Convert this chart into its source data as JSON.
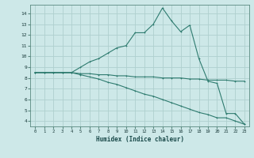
{
  "xlabel": "Humidex (Indice chaleur)",
  "background_color": "#cde8e8",
  "line_color": "#2e7b6f",
  "grid_color": "#afd0ce",
  "x_values": [
    0,
    1,
    2,
    3,
    4,
    5,
    6,
    7,
    8,
    9,
    10,
    11,
    12,
    13,
    14,
    15,
    16,
    17,
    18,
    19,
    20,
    21,
    22,
    23
  ],
  "line1_y": [
    8.5,
    8.5,
    8.5,
    8.5,
    8.5,
    8.4,
    8.4,
    8.3,
    8.3,
    8.2,
    8.2,
    8.1,
    8.1,
    8.1,
    8.0,
    8.0,
    8.0,
    7.9,
    7.9,
    7.8,
    7.8,
    7.8,
    7.7,
    7.7
  ],
  "line2_y": [
    8.5,
    8.5,
    8.5,
    8.5,
    8.5,
    9.0,
    9.5,
    9.8,
    10.3,
    10.8,
    11.0,
    12.2,
    12.2,
    13.0,
    14.5,
    13.3,
    12.3,
    12.9,
    9.8,
    7.7,
    7.5,
    4.7,
    4.7,
    3.7
  ],
  "line3_y": [
    8.5,
    8.5,
    8.5,
    8.5,
    8.5,
    8.3,
    8.1,
    7.9,
    7.6,
    7.4,
    7.1,
    6.8,
    6.5,
    6.3,
    6.0,
    5.7,
    5.4,
    5.1,
    4.8,
    4.6,
    4.3,
    4.3,
    4.0,
    3.7
  ],
  "ylim_min": 3.5,
  "ylim_max": 14.8,
  "xlim_min": -0.5,
  "xlim_max": 23.5,
  "yticks": [
    4,
    5,
    6,
    7,
    8,
    9,
    10,
    11,
    12,
    13,
    14
  ],
  "xticks": [
    0,
    1,
    2,
    3,
    4,
    5,
    6,
    7,
    8,
    9,
    10,
    11,
    12,
    13,
    14,
    15,
    16,
    17,
    18,
    19,
    20,
    21,
    22,
    23
  ],
  "marker_indices_line2": [
    0,
    1,
    2,
    3,
    4,
    5,
    7,
    9,
    10,
    11,
    12,
    13,
    14,
    15,
    16,
    17,
    22,
    23
  ],
  "marker_indices_line3": [
    20,
    21,
    22,
    23
  ]
}
